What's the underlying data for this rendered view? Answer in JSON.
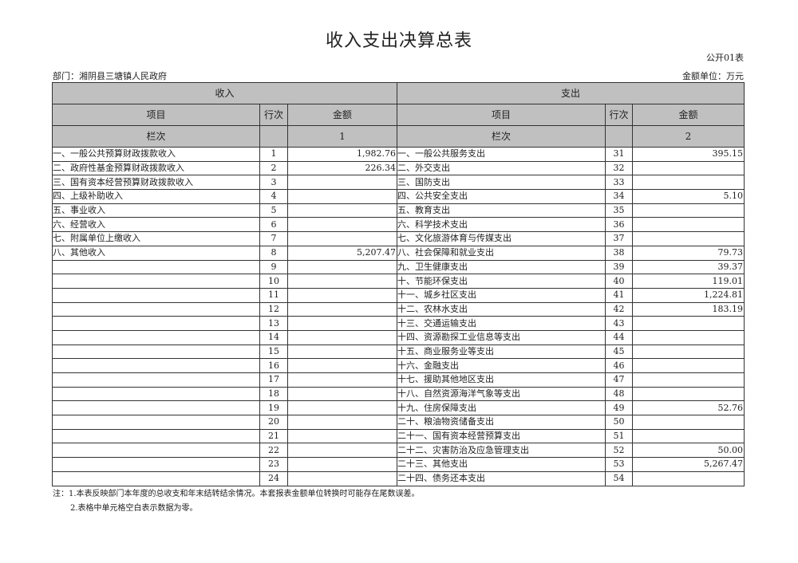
{
  "title": "收入支出决算总表",
  "table_no": "公开01表",
  "department": "部门：湘阴县三塘镇人民政府",
  "unit": "金额单位：万元",
  "headers": {
    "income": "收入",
    "expense": "支出",
    "item": "项目",
    "row_no": "行次",
    "amount": "金额",
    "column_no": "栏次",
    "income_col": "1",
    "expense_col": "2"
  },
  "income": [
    {
      "item": "一、一般公共预算财政拨款收入",
      "row": "1",
      "amount": "1,982.76"
    },
    {
      "item": "二、政府性基金预算财政拨款收入",
      "row": "2",
      "amount": "226.34"
    },
    {
      "item": "三、国有资本经营预算财政拨款收入",
      "row": "3",
      "amount": ""
    },
    {
      "item": "四、上级补助收入",
      "row": "4",
      "amount": ""
    },
    {
      "item": "五、事业收入",
      "row": "5",
      "amount": ""
    },
    {
      "item": "六、经营收入",
      "row": "6",
      "amount": ""
    },
    {
      "item": "七、附属单位上缴收入",
      "row": "7",
      "amount": ""
    },
    {
      "item": "八、其他收入",
      "row": "8",
      "amount": "5,207.47"
    },
    {
      "item": "",
      "row": "9",
      "amount": ""
    },
    {
      "item": "",
      "row": "10",
      "amount": ""
    },
    {
      "item": "",
      "row": "11",
      "amount": ""
    },
    {
      "item": "",
      "row": "12",
      "amount": ""
    },
    {
      "item": "",
      "row": "13",
      "amount": ""
    },
    {
      "item": "",
      "row": "14",
      "amount": ""
    },
    {
      "item": "",
      "row": "15",
      "amount": ""
    },
    {
      "item": "",
      "row": "16",
      "amount": ""
    },
    {
      "item": "",
      "row": "17",
      "amount": ""
    },
    {
      "item": "",
      "row": "18",
      "amount": ""
    },
    {
      "item": "",
      "row": "19",
      "amount": ""
    },
    {
      "item": "",
      "row": "20",
      "amount": ""
    },
    {
      "item": "",
      "row": "21",
      "amount": ""
    },
    {
      "item": "",
      "row": "22",
      "amount": ""
    },
    {
      "item": "",
      "row": "23",
      "amount": ""
    },
    {
      "item": "",
      "row": "24",
      "amount": ""
    }
  ],
  "expense": [
    {
      "item": "一、一般公共服务支出",
      "row": "31",
      "amount": "395.15"
    },
    {
      "item": "二、外交支出",
      "row": "32",
      "amount": ""
    },
    {
      "item": "三、国防支出",
      "row": "33",
      "amount": ""
    },
    {
      "item": "四、公共安全支出",
      "row": "34",
      "amount": "5.10"
    },
    {
      "item": "五、教育支出",
      "row": "35",
      "amount": ""
    },
    {
      "item": "六、科学技术支出",
      "row": "36",
      "amount": ""
    },
    {
      "item": "七、文化旅游体育与传媒支出",
      "row": "37",
      "amount": ""
    },
    {
      "item": "八、社会保障和就业支出",
      "row": "38",
      "amount": "79.73"
    },
    {
      "item": "九、卫生健康支出",
      "row": "39",
      "amount": "39.37"
    },
    {
      "item": "十、节能环保支出",
      "row": "40",
      "amount": "119.01"
    },
    {
      "item": "十一、城乡社区支出",
      "row": "41",
      "amount": "1,224.81"
    },
    {
      "item": "十二、农林水支出",
      "row": "42",
      "amount": "183.19"
    },
    {
      "item": "十三、交通运输支出",
      "row": "43",
      "amount": ""
    },
    {
      "item": "十四、资源勘探工业信息等支出",
      "row": "44",
      "amount": ""
    },
    {
      "item": "十五、商业服务业等支出",
      "row": "45",
      "amount": ""
    },
    {
      "item": "十六、金融支出",
      "row": "46",
      "amount": ""
    },
    {
      "item": "十七、援助其他地区支出",
      "row": "47",
      "amount": ""
    },
    {
      "item": "十八、自然资源海洋气象等支出",
      "row": "48",
      "amount": ""
    },
    {
      "item": "十九、住房保障支出",
      "row": "49",
      "amount": "52.76"
    },
    {
      "item": "二十、粮油物资储备支出",
      "row": "50",
      "amount": ""
    },
    {
      "item": "二十一、国有资本经营预算支出",
      "row": "51",
      "amount": ""
    },
    {
      "item": "二十二、灾害防治及应急管理支出",
      "row": "52",
      "amount": "50.00"
    },
    {
      "item": "二十三、其他支出",
      "row": "53",
      "amount": "5,267.47"
    },
    {
      "item": "二十四、债务还本支出",
      "row": "54",
      "amount": ""
    }
  ],
  "notes": [
    "注：1.本表反映部门本年度的总收支和年末结转结余情况。本套报表金额单位转换时可能存在尾数误差。",
    "2.表格中单元格空白表示数据为零。"
  ]
}
